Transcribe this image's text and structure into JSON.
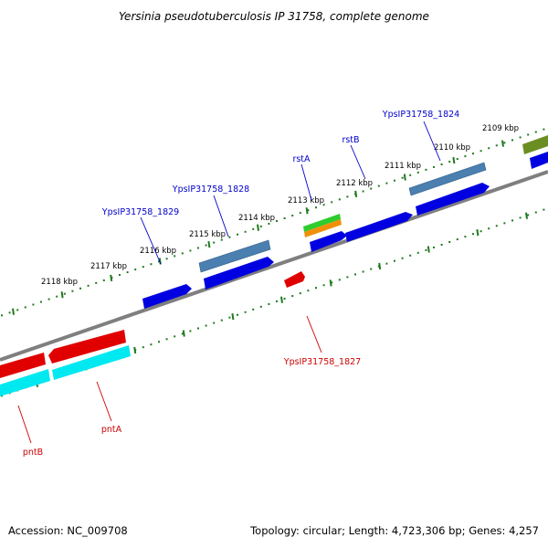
{
  "header": {
    "title": "Yersinia pseudotuberculosis IP 31758, complete genome"
  },
  "footer": {
    "accession": "Accession: NC_009708",
    "summary": "Topology: circular; Length: 4,723,306 bp; Genes: 4,257"
  },
  "scale_labels": [
    "2109 kbp",
    "2110 kbp",
    "2111 kbp",
    "2112 kbp",
    "2113 kbp",
    "2114 kbp",
    "2115 kbp",
    "2116 kbp",
    "2117 kbp",
    "2118 kbp"
  ],
  "gene_labels": {
    "forward": [
      "YpsIP31758_1824",
      "rstB",
      "rstA",
      "YpsIP31758_1828",
      "YpsIP31758_1829"
    ],
    "reverse": [
      "YpsIP31758_1827",
      "pntA",
      "pntB"
    ]
  },
  "colors": {
    "forward_label": "#0000cc",
    "reverse_label": "#cc0000",
    "backbone": "#7f7f7f",
    "tick": "#1f7a1f",
    "cds_blue": "#0000e0",
    "steel_blue": "#4a7fb0",
    "red": "#e00000",
    "cyan": "#00e8f0",
    "green": "#2ecc2e",
    "orange": "#f0900a",
    "olive": "#6b8e23"
  }
}
